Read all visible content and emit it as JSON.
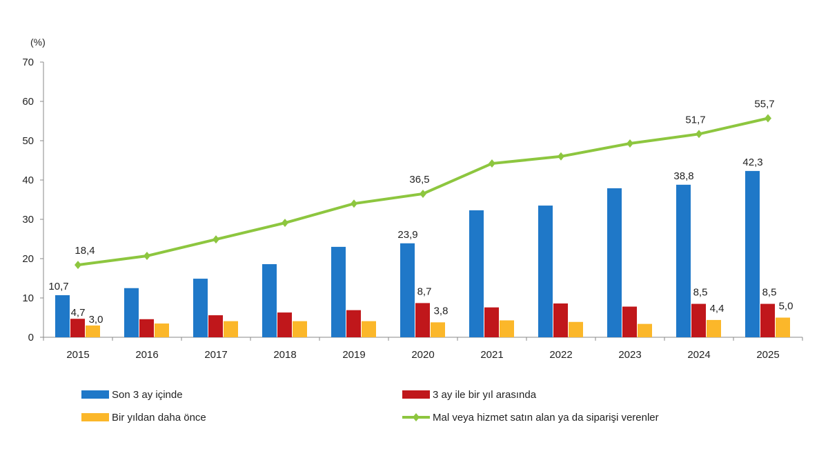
{
  "chart_data": {
    "type": "bar",
    "ylabel": "(%)",
    "ylim": [
      0,
      70
    ],
    "yticks": [
      0,
      10,
      20,
      30,
      40,
      50,
      60,
      70
    ],
    "grid": false,
    "legend_position": "bottom",
    "categories": [
      "2015",
      "2016",
      "2017",
      "2018",
      "2019",
      "2020",
      "2021",
      "2022",
      "2023",
      "2024",
      "2025"
    ],
    "series": [
      {
        "name": "Son 3 ay içinde",
        "kind": "bar",
        "color": "#1f78c8",
        "values": [
          10.7,
          12.5,
          14.9,
          18.6,
          23.0,
          23.9,
          32.3,
          33.5,
          37.9,
          38.8,
          42.3
        ],
        "labels": [
          "10,7",
          "",
          "",
          "",
          "",
          "23,9",
          "",
          "",
          "",
          "38,8",
          "42,3"
        ]
      },
      {
        "name": "3 ay ile bir yıl arasında",
        "kind": "bar",
        "color": "#c0171b",
        "values": [
          4.7,
          4.6,
          5.6,
          6.3,
          6.9,
          8.7,
          7.6,
          8.6,
          7.8,
          8.5,
          8.5
        ],
        "labels": [
          "4,7",
          "",
          "",
          "",
          "",
          "8,7",
          "",
          "",
          "",
          "8,5",
          "8,5"
        ]
      },
      {
        "name": "Bir yıldan daha önce",
        "kind": "bar",
        "color": "#fbb72a",
        "values": [
          3.0,
          3.5,
          4.1,
          4.1,
          4.1,
          3.8,
          4.3,
          3.9,
          3.4,
          4.4,
          5.0
        ],
        "labels": [
          "3,0",
          "",
          "",
          "",
          "",
          "3,8",
          "",
          "",
          "",
          "4,4",
          "5,0"
        ]
      },
      {
        "name": "Mal veya hizmet satın alan ya da siparişi verenler",
        "kind": "line",
        "color": "#8dc63f",
        "values": [
          18.4,
          20.7,
          24.9,
          29.1,
          34.0,
          36.5,
          44.2,
          46.0,
          49.3,
          51.7,
          55.7
        ],
        "labels": [
          "18,4",
          "",
          "",
          "",
          "",
          "36,5",
          "",
          "",
          "",
          "51,7",
          "55,7"
        ]
      }
    ]
  }
}
